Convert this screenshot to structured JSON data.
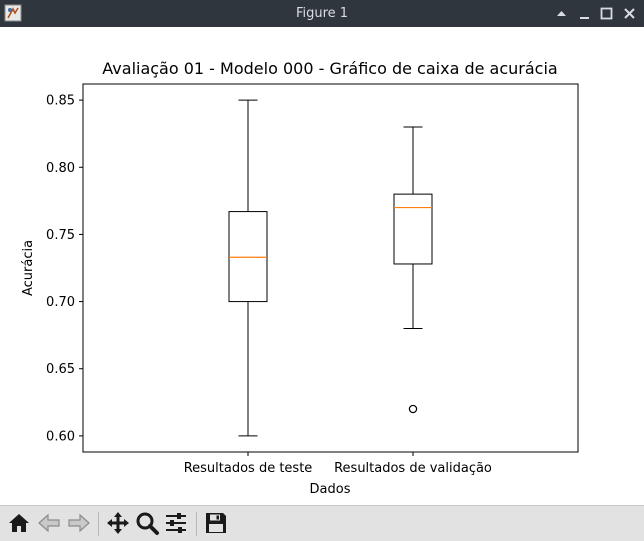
{
  "window": {
    "title": "Figure 1"
  },
  "toolbar": {
    "buttons": [
      {
        "name": "home",
        "icon": "home-icon"
      },
      {
        "name": "back",
        "icon": "back-arrow-icon"
      },
      {
        "name": "forward",
        "icon": "forward-arrow-icon"
      },
      {
        "name": "pan",
        "icon": "move-icon"
      },
      {
        "name": "zoom",
        "icon": "magnifier-icon"
      },
      {
        "name": "configure-subplots",
        "icon": "sliders-icon"
      },
      {
        "name": "save",
        "icon": "floppy-disk-icon"
      }
    ]
  },
  "chart_data": {
    "type": "boxplot",
    "title": "Avaliação 01 - Modelo 000 - Gráfico de caixa de acurácia",
    "xlabel": "Dados",
    "ylabel": "Acurácia",
    "ylim": [
      0.588,
      0.862
    ],
    "yticks": [
      0.6,
      0.65,
      0.7,
      0.75,
      0.8,
      0.85
    ],
    "ytick_labels": [
      "0.60",
      "0.65",
      "0.70",
      "0.75",
      "0.80",
      "0.85"
    ],
    "categories": [
      "Resultados de teste",
      "Resultados de validação"
    ],
    "boxes": [
      {
        "whisker_low": 0.6,
        "q1": 0.7,
        "median": 0.733,
        "q3": 0.767,
        "whisker_high": 0.85,
        "outliers": []
      },
      {
        "whisker_low": 0.68,
        "q1": 0.728,
        "median": 0.77,
        "q3": 0.78,
        "whisker_high": 0.83,
        "outliers": [
          0.62
        ]
      }
    ],
    "grid": false,
    "colors": {
      "box": "#000000",
      "median": "#ff7f0e",
      "outlier_edge": "#000000"
    }
  }
}
